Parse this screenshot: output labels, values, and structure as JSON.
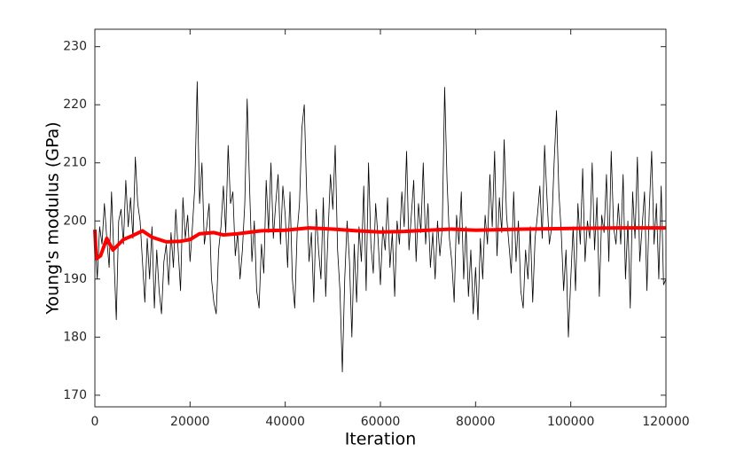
{
  "chart_data": {
    "type": "line",
    "xlabel": "Iteration",
    "ylabel": "Young's modulus (GPa)",
    "xlim": [
      0,
      120000
    ],
    "ylim": [
      168,
      233
    ],
    "xticks": [
      0,
      20000,
      40000,
      60000,
      80000,
      100000,
      120000
    ],
    "yticks": [
      170,
      180,
      190,
      200,
      210,
      220,
      230
    ],
    "series": [
      {
        "color": "#000000",
        "width": 0.8,
        "x": [
          0,
          500,
          1000,
          1500,
          2000,
          2500,
          3000,
          3500,
          4000,
          4500,
          5000,
          5500,
          6000,
          6500,
          7000,
          7500,
          8000,
          8500,
          9000,
          9500,
          10000,
          10500,
          11000,
          11500,
          12000,
          12500,
          13000,
          13500,
          14000,
          14500,
          15000,
          15500,
          16000,
          16500,
          17000,
          17500,
          18000,
          18500,
          19000,
          19500,
          20000,
          20500,
          21000,
          21500,
          22000,
          22500,
          23000,
          23500,
          24000,
          24500,
          25000,
          25500,
          26000,
          26500,
          27000,
          27500,
          28000,
          28500,
          29000,
          29500,
          30000,
          30500,
          31000,
          31500,
          32000,
          32500,
          33000,
          33500,
          34000,
          34500,
          35000,
          35500,
          36000,
          36500,
          37000,
          37500,
          38000,
          38500,
          39000,
          39500,
          40000,
          40500,
          41000,
          41500,
          42000,
          42500,
          43000,
          43500,
          44000,
          44500,
          45000,
          45500,
          46000,
          46500,
          47000,
          47500,
          48000,
          48500,
          49000,
          49500,
          50000,
          50500,
          51000,
          51500,
          52000,
          52500,
          53000,
          53500,
          54000,
          54500,
          55000,
          55500,
          56000,
          56500,
          57000,
          57500,
          58000,
          58500,
          59000,
          59500,
          60000,
          60500,
          61000,
          61500,
          62000,
          62500,
          63000,
          63500,
          64000,
          64500,
          65000,
          65500,
          66000,
          66500,
          67000,
          67500,
          68000,
          68500,
          69000,
          69500,
          70000,
          70500,
          71000,
          71500,
          72000,
          72500,
          73000,
          73500,
          74000,
          74500,
          75000,
          75500,
          76000,
          76500,
          77000,
          77500,
          78000,
          78500,
          79000,
          79500,
          80000,
          80500,
          81000,
          81500,
          82000,
          82500,
          83000,
          83500,
          84000,
          84500,
          85000,
          85500,
          86000,
          86500,
          87000,
          87500,
          88000,
          88500,
          89000,
          89500,
          90000,
          90500,
          91000,
          91500,
          92000,
          92500,
          93000,
          93500,
          94000,
          94500,
          95000,
          95500,
          96000,
          96500,
          97000,
          97500,
          98000,
          98500,
          99000,
          99500,
          100000,
          100500,
          101000,
          101500,
          102000,
          102500,
          103000,
          103500,
          104000,
          104500,
          105000,
          105500,
          106000,
          106500,
          107000,
          107500,
          108000,
          108500,
          109000,
          109500,
          110000,
          110500,
          111000,
          111500,
          112000,
          112500,
          113000,
          113500,
          114000,
          114500,
          115000,
          115500,
          116000,
          116500,
          117000,
          117500,
          118000,
          118500,
          119000,
          119500,
          120000
        ],
        "values": [
          198,
          190,
          199,
          196,
          203,
          197,
          192,
          205,
          194,
          183,
          200,
          202,
          196,
          207,
          199,
          204,
          197,
          211,
          203,
          200,
          193,
          186,
          197,
          190,
          199,
          185,
          195,
          188,
          184,
          193,
          196,
          189,
          198,
          192,
          202,
          195,
          188,
          204,
          197,
          201,
          193,
          199,
          206,
          224,
          203,
          210,
          196,
          199,
          203,
          190,
          186,
          184,
          195,
          199,
          206,
          198,
          213,
          203,
          205,
          194,
          198,
          190,
          195,
          203,
          221,
          206,
          193,
          200,
          188,
          185,
          196,
          191,
          207,
          198,
          210,
          197,
          203,
          208,
          196,
          206,
          201,
          192,
          205,
          190,
          185,
          198,
          203,
          216,
          220,
          205,
          193,
          198,
          186,
          202,
          195,
          190,
          204,
          187,
          198,
          208,
          202,
          213,
          195,
          188,
          174,
          190,
          200,
          193,
          180,
          196,
          186,
          199,
          193,
          206,
          188,
          210,
          196,
          191,
          203,
          197,
          189,
          199,
          195,
          204,
          192,
          198,
          187,
          200,
          196,
          205,
          199,
          212,
          195,
          201,
          207,
          193,
          203,
          198,
          210,
          196,
          203,
          192,
          198,
          190,
          200,
          194,
          199,
          223,
          207,
          197,
          193,
          186,
          201,
          196,
          205,
          190,
          199,
          187,
          195,
          184,
          192,
          183,
          197,
          190,
          201,
          196,
          208,
          199,
          212,
          194,
          204,
          198,
          214,
          201,
          196,
          191,
          205,
          193,
          200,
          188,
          185,
          195,
          190,
          199,
          186,
          197,
          201,
          206,
          197,
          213,
          204,
          196,
          199,
          210,
          219,
          205,
          198,
          188,
          195,
          180,
          190,
          199,
          188,
          203,
          196,
          209,
          193,
          200,
          197,
          210,
          195,
          204,
          187,
          201,
          198,
          208,
          193,
          212,
          199,
          196,
          203,
          196,
          208,
          190,
          200,
          185,
          205,
          197,
          211,
          193,
          199,
          205,
          188,
          202,
          212,
          196,
          203,
          190,
          206,
          189,
          190
        ]
      },
      {
        "color": "#ff0000",
        "width": 4,
        "x": [
          0,
          300,
          1200,
          2500,
          3800,
          6000,
          8000,
          10000,
          12000,
          15000,
          18000,
          20000,
          22000,
          25000,
          27000,
          30000,
          32000,
          35000,
          40000,
          45000,
          50000,
          55000,
          60000,
          65000,
          70000,
          75000,
          80000,
          85000,
          90000,
          100000,
          110000,
          120000
        ],
        "values": [
          198.5,
          193.5,
          194,
          197,
          195,
          196.8,
          197.5,
          198.3,
          197.2,
          196.4,
          196.5,
          196.8,
          197.8,
          198,
          197.6,
          197.8,
          198,
          198.3,
          198.4,
          198.8,
          198.6,
          198.3,
          198.1,
          198.2,
          198.4,
          198.6,
          198.4,
          198.5,
          198.6,
          198.7,
          198.8,
          198.8
        ]
      }
    ]
  }
}
